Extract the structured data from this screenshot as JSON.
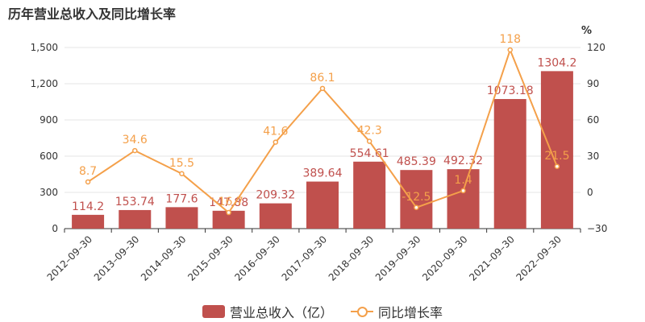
{
  "header": {
    "title": "历年营业总收入及同比增长率"
  },
  "colors": {
    "bar": "#c0504d",
    "line": "#f4a04a",
    "axis": "#333333",
    "grid": "#e6e6e6"
  },
  "chart_data": {
    "type": "bar",
    "title": "历年营业总收入及同比增长率",
    "categories": [
      "2012–09–30",
      "2013–09–30",
      "2014–09–30",
      "2015–09–30",
      "2016–09–30",
      "2017–09–30",
      "2018–09–30",
      "2019–09–30",
      "2020–09–30",
      "2021–09–30",
      "2022–09–30"
    ],
    "series": [
      {
        "name": "营业总收入（亿）",
        "type": "bar",
        "axis": "left",
        "values": [
          114.2,
          153.74,
          177.6,
          147.88,
          209.32,
          389.64,
          554.61,
          485.39,
          492.32,
          1073.18,
          1304.2
        ],
        "labels": [
          "114.2",
          "153.74",
          "177.6",
          "147.88",
          "209.32",
          "389.64",
          "554.61",
          "485.39",
          "492.32",
          "1073.18",
          "1304.2"
        ]
      },
      {
        "name": "同比增长率",
        "type": "line",
        "axis": "right",
        "values": [
          8.7,
          34.6,
          15.5,
          -16.7,
          41.6,
          86.1,
          42.3,
          -12.5,
          1.4,
          118,
          21.5
        ],
        "labels": [
          "8.7",
          "34.6",
          "15.5",
          "-16.7",
          "41.6",
          "86.1",
          "42.3",
          "-12.5",
          "1.4",
          "118",
          "21.5"
        ]
      }
    ],
    "y_left": {
      "ticks": [
        "0",
        "300",
        "600",
        "900",
        "1,200",
        "1,500"
      ],
      "values": [
        0,
        300,
        600,
        900,
        1200,
        1500
      ],
      "ylim": [
        0,
        1500
      ]
    },
    "y_right": {
      "label": "%",
      "ticks": [
        "−30",
        "0",
        "30",
        "60",
        "90",
        "120"
      ],
      "values": [
        -30,
        0,
        30,
        60,
        90,
        120
      ],
      "ylim": [
        -30,
        120
      ]
    },
    "grid": true,
    "legend": "bottom-center"
  },
  "legend": {
    "bar_label": "营业总收入（亿）",
    "line_label": "同比增长率"
  }
}
